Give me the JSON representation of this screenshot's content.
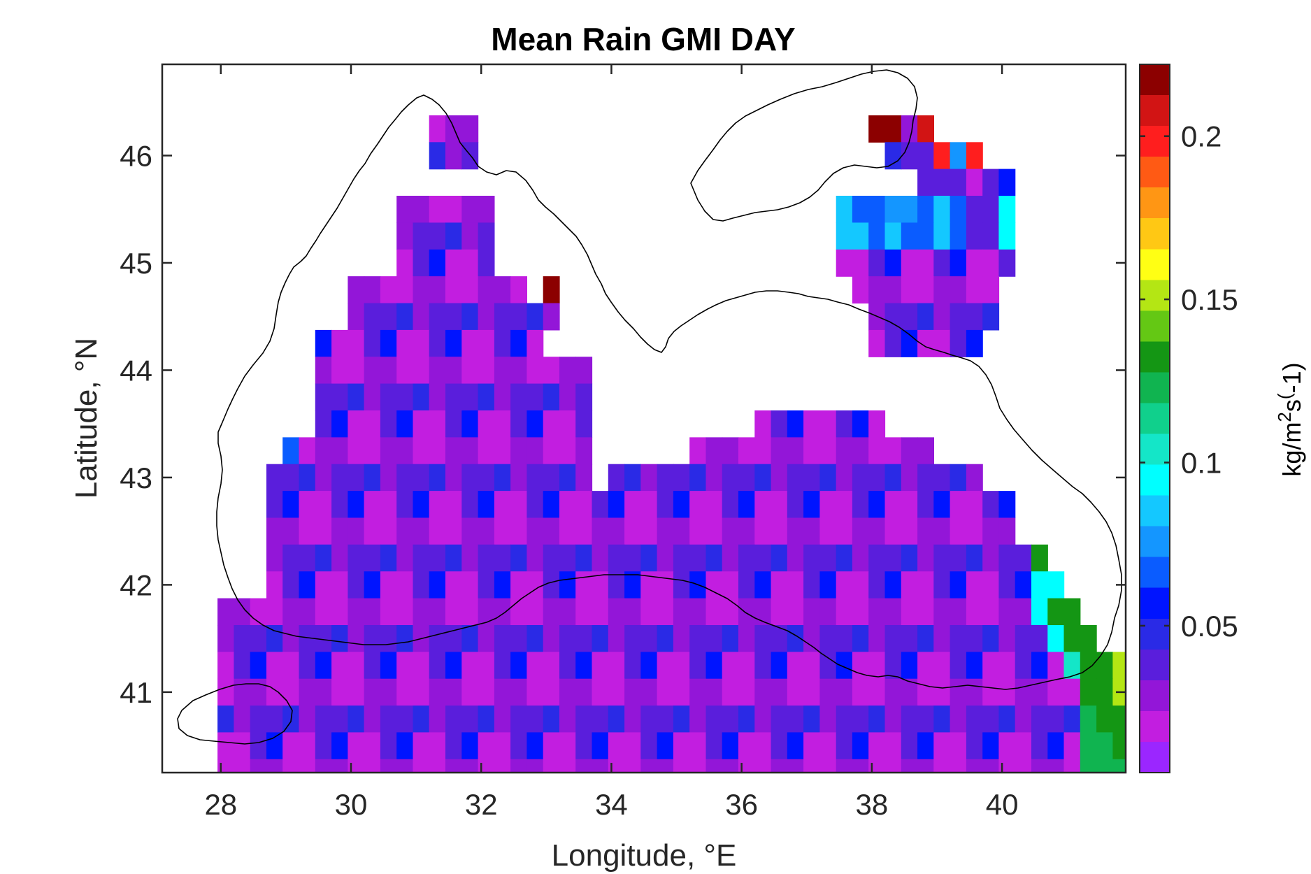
{
  "chart_data": {
    "type": "heatmap",
    "title": "Mean Rain GMI DAY",
    "xlabel": "Longitude, °E",
    "ylabel": "Latitude, °N",
    "colorbar_label": "kg/m^2s^(-1)",
    "colorbar_label_parts": {
      "base": "kg/m",
      "sup1": "2",
      "mid": "s",
      "sup2": "(",
      "tail": "-1)"
    },
    "xlim": [
      27.1,
      41.9
    ],
    "ylim": [
      40.25,
      46.85
    ],
    "clim": [
      0.005,
      0.222
    ],
    "x_ticks": [
      28,
      30,
      32,
      34,
      36,
      38,
      40
    ],
    "y_ticks": [
      41,
      42,
      43,
      44,
      45,
      46
    ],
    "colorbar_ticks": [
      0.05,
      0.1,
      0.15,
      0.2
    ],
    "colormap": [
      "#9b26ff",
      "#c21ee0",
      "#9316d8",
      "#5a1edc",
      "#2a2ae6",
      "#0014ff",
      "#0a5cff",
      "#1496ff",
      "#14c8ff",
      "#00ffff",
      "#14e6c8",
      "#10d08c",
      "#10b450",
      "#149614",
      "#64c814",
      "#b4e614",
      "#ffff14",
      "#ffc814",
      "#ff9614",
      "#ff5a14",
      "#ff1e1e",
      "#d21414",
      "#8c0000"
    ],
    "grid": {
      "lon0": 27.95,
      "lat_top": 46.5,
      "dlon": 0.25,
      "dlat": 0.25
    },
    "cell_values": [
      "..............................................................",
      ".............^^^........................##^~...................",
      ".............^^^.........................^z^%y%.................",
      "...........................................^zz^z^...............",
      "...........^^^^^^.....................wxxyyxwxzzd...............",
      "...........^^^^^^.....................wwxwxxwxzzd...............",
      "...........^^^^^^.....................^^^^^^^^^^^...............",
      "........^^^^^^^^^^^.@..................^^^^^^^^^................",
      "........^^^^^^^^^^^^^...................^^^^^^^^................",
      "......^^^^^^^^^^^^^^....................^^^^^^^.................",
      "......^^^^^^^^^^^^^^^^^.........................................",
      "......^^^^^^^^^^^^^^^^^.........................................",
      "......^^^^^^^^^^^^^^^^^..........^^^^^^^^.......................",
      "....x^^^^^^^^^^^^^^^^^^......^^^^^^^^^^^^^^^....................",
      "...^^^^^^^^^^^^^^^^^^^^.^^^^^^^^^^^^^^^^^^^^^^^.................",
      "...^^^^^^^^^^^^^^^^^^^^^^^^^^^^^^^^^^^^^^^^^^^^^^...............",
      "...^^^^^^^^^^^^^^^^^^^^^^^^^^^^^^^^^^^^^^^^^^^^^^...............",
      "...^^^^^^^^^^^^^^^^^^^^^^^^^^^^^^^^^^^^^^^^^^^^^^^g.............",
      "...^^^^^^^^^^^^^^^^^^^^^^^^^^^^^^^^^^^^^^^^^^^^^^^dd............",
      "^^^^^^^^^^^^^^^^^^^^^^^^^^^^^^^^^^^^^^^^^^^^^^^^^^kgg...........",
      "^^^^^^^^^^^^^^^^^^^^^^^^^^^^^^^^^^^^^^^^^^^^^^^^^^^kgg..........",
      "^^^^^^^^^^^^^^^^^^^^^^^^^^^^^^^^^^^^^^^^^^^^^^^^^^^^iggp........",
      "^^^^^^^^^^^^^^^^^^^^^^^^^^^^^^^^^^^^^^^^^^^^^^^^^^^^^ggpp.......",
      "^^^^^^^^^^^^^^^^^^^^^^^^^^^^^^^^^^^^^^^^^^^^^^^^^^^^^jgggu......",
      "^^^^^^^^^^^^^^^^^^^^^^^^^^^^^^^^^^^^^^^^^^^^^^^^^^^^^jjggju.....",
      "^^^^^^^^^^^^^^^^^^^^^^^^^^^^^^^^^^^^^^^^^^^^^^^^^^^^^jjjggtn....",
      "^^^^^^^^^^^^^^^^^^^^^^^^^^^^^^^^^^^^^^^^^^^^^^^^^^^^^jjjjgwy~...",
      "^^^^^^^^^^^^^^^^^^^^^^^^^^^^^^^^^^^^^^^^^^^^^^^^^^^^^^jjjjjwyy~.",
      ".^^^^^^^^^^^^^^^^^^^^^^^^^^^^^^^^^^^^^^^^^^^^^^^^^^^^^jjjjjhvy~.",
      "..^^^^^^^^^^^^^^^^^^^^^^^^^^^^^^^^^^^^^^^^^^^^^^^^^^^^^jjjjjhxx..",
      "..^^^^^^^^^^^^^^^^^^^^^^^^^^^^^^^^^^^^^^^^^^^^^^^^^^^^^^^^jjjh...",
      "....^^^^^^^^^^^^^^^^^^...................^^^^^^^^^^^^^^^^jj.....",
      "....^^^^^..........................................^^^.^^.......",
      ".....^^^^^.......................................................",
      ".....^^^^^......................................................."
    ]
  }
}
